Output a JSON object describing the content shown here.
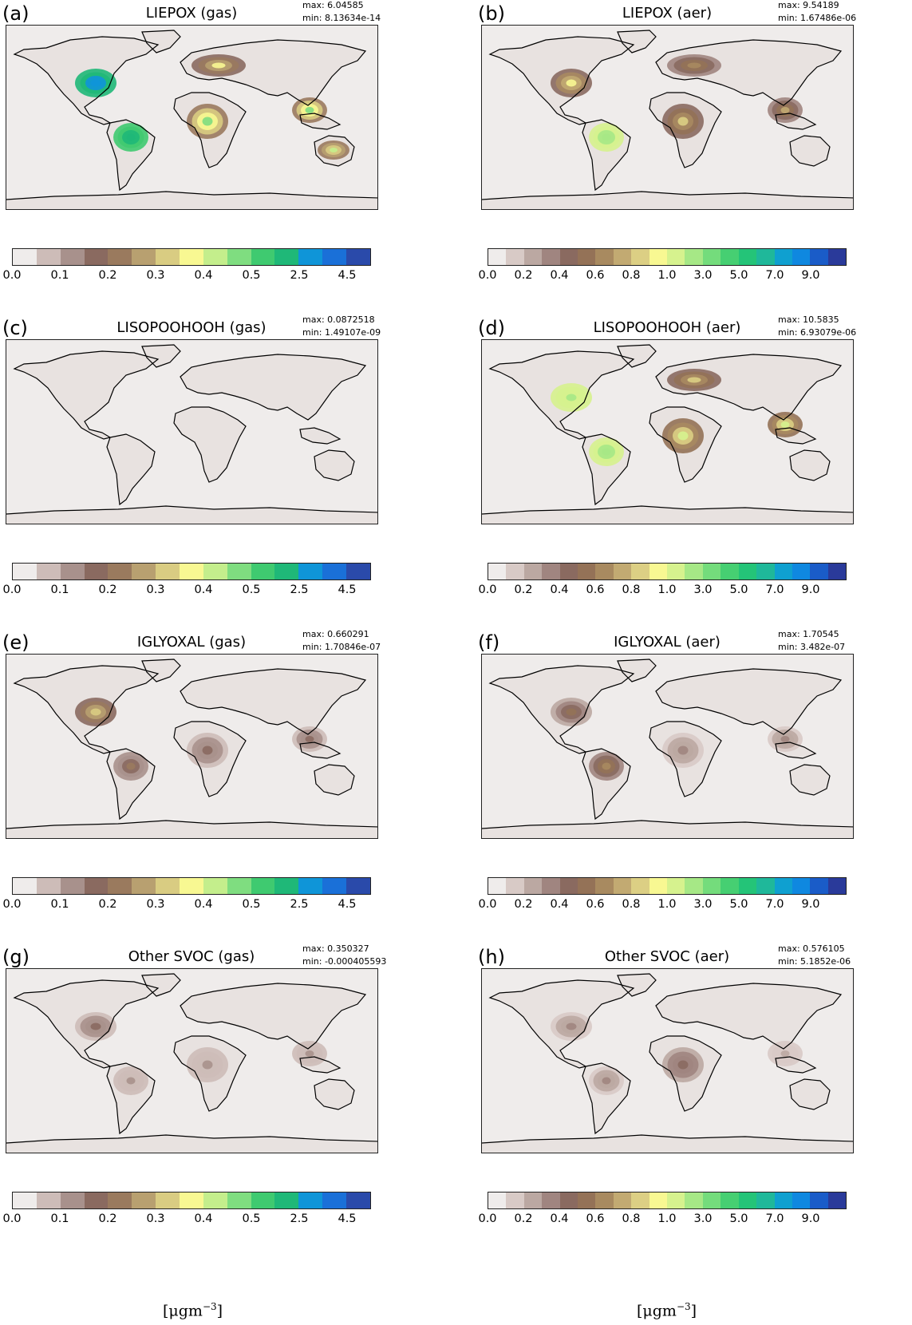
{
  "figure": {
    "unit_label_base": "[μgm",
    "unit_label_exp": "−3",
    "unit_label_close": "]"
  },
  "colorbars": {
    "gas": {
      "ticks": [
        "0.0",
        "0.1",
        "0.2",
        "0.3",
        "0.4",
        "0.5",
        "2.5",
        "4.5"
      ],
      "levels": [
        0.0,
        0.05,
        0.1,
        0.15,
        0.2,
        0.25,
        0.3,
        0.35,
        0.4,
        0.45,
        0.5,
        1.5,
        2.5,
        3.5,
        4.5,
        5.5
      ],
      "colors": [
        "#efeceb",
        "#cdbcb8",
        "#a8918c",
        "#8a6a60",
        "#9a7a5e",
        "#b8a070",
        "#d9cc82",
        "#f8f892",
        "#c4ee8c",
        "#7fdd80",
        "#3fca70",
        "#1fb878",
        "#0f95d8",
        "#1a70d8",
        "#2a4aaa"
      ]
    },
    "aer": {
      "ticks": [
        "0.0",
        "0.2",
        "0.4",
        "0.6",
        "0.8",
        "1.0",
        "3.0",
        "5.0",
        "7.0",
        "9.0"
      ],
      "levels": [
        0.0,
        0.1,
        0.2,
        0.3,
        0.4,
        0.5,
        0.6,
        0.7,
        0.8,
        0.9,
        1.0,
        2.0,
        3.0,
        4.0,
        5.0,
        6.0,
        7.0,
        8.0,
        9.0,
        10.0
      ],
      "colors": [
        "#efeceb",
        "#d8cac6",
        "#bba8a2",
        "#a08580",
        "#8a6a60",
        "#947257",
        "#a88a60",
        "#c2aa72",
        "#dccf84",
        "#f8f892",
        "#d6f28e",
        "#a6e886",
        "#74dc7c",
        "#46cf72",
        "#24c478",
        "#1fb89a",
        "#0fa0d0",
        "#0f88e0",
        "#1a5cc8",
        "#2a3a9a"
      ]
    }
  },
  "panels": [
    {
      "letter": "(a)",
      "title": "LIEPOX (gas)",
      "max": "max: 6.04585",
      "min": "min: 8.13634e-14",
      "colorbar": "gas",
      "hotspots": [
        {
          "region": "eastern-us",
          "value": 3.0
        },
        {
          "region": "amazon",
          "value": 2.0
        },
        {
          "region": "central-africa",
          "value": 0.45
        },
        {
          "region": "se-asia",
          "value": 0.45
        },
        {
          "region": "australia",
          "value": 0.4
        },
        {
          "region": "europe",
          "value": 0.35
        }
      ]
    },
    {
      "letter": "(b)",
      "title": "LIEPOX (aer)",
      "max": "max: 9.54189",
      "min": "min: 1.67486e-06",
      "colorbar": "aer",
      "hotspots": [
        {
          "region": "eastern-us",
          "value": 0.9
        },
        {
          "region": "amazon",
          "value": 2.5
        },
        {
          "region": "central-africa",
          "value": 0.8
        },
        {
          "region": "se-asia",
          "value": 0.7
        },
        {
          "region": "europe",
          "value": 0.6
        }
      ]
    },
    {
      "letter": "(c)",
      "title": "LISOPOOHOOH (gas)",
      "max": "max: 0.0872518",
      "min": "min: 1.49107e-09",
      "colorbar": "gas",
      "hotspots": []
    },
    {
      "letter": "(d)",
      "title": "LISOPOOHOOH (aer)",
      "max": "max: 10.5835",
      "min": "min: 6.93079e-06",
      "colorbar": "aer",
      "hotspots": [
        {
          "region": "eastern-us",
          "value": 2.0
        },
        {
          "region": "amazon",
          "value": 2.5
        },
        {
          "region": "central-africa",
          "value": 1.0
        },
        {
          "region": "se-asia",
          "value": 1.0
        },
        {
          "region": "europe",
          "value": 0.8
        }
      ]
    },
    {
      "letter": "(e)",
      "title": "IGLYOXAL (gas)",
      "max": "max: 0.660291",
      "min": "min: 1.70846e-07",
      "colorbar": "gas",
      "hotspots": [
        {
          "region": "eastern-us",
          "value": 0.3
        },
        {
          "region": "amazon",
          "value": 0.2
        },
        {
          "region": "central-africa",
          "value": 0.15
        },
        {
          "region": "se-asia",
          "value": 0.15
        }
      ]
    },
    {
      "letter": "(f)",
      "title": "IGLYOXAL (aer)",
      "max": "max: 1.70545",
      "min": "min: 3.482e-07",
      "colorbar": "aer",
      "hotspots": [
        {
          "region": "eastern-us",
          "value": 0.5
        },
        {
          "region": "amazon",
          "value": 0.6
        },
        {
          "region": "central-africa",
          "value": 0.3
        },
        {
          "region": "se-asia",
          "value": 0.3
        }
      ]
    },
    {
      "letter": "(g)",
      "title": "Other SVOC (gas)",
      "max": "max: 0.350327",
      "min": "min: -0.000405593",
      "colorbar": "gas",
      "hotspots": [
        {
          "region": "eastern-us",
          "value": 0.15
        },
        {
          "region": "amazon",
          "value": 0.1
        },
        {
          "region": "central-africa",
          "value": 0.1
        },
        {
          "region": "se-asia",
          "value": 0.1
        }
      ]
    },
    {
      "letter": "(h)",
      "title": "Other SVOC (aer)",
      "max": "max: 0.576105",
      "min": "min: 5.1852e-06",
      "colorbar": "aer",
      "hotspots": [
        {
          "region": "eastern-us",
          "value": 0.3
        },
        {
          "region": "amazon",
          "value": 0.3
        },
        {
          "region": "central-africa",
          "value": 0.45
        },
        {
          "region": "se-asia",
          "value": 0.2
        }
      ]
    }
  ]
}
